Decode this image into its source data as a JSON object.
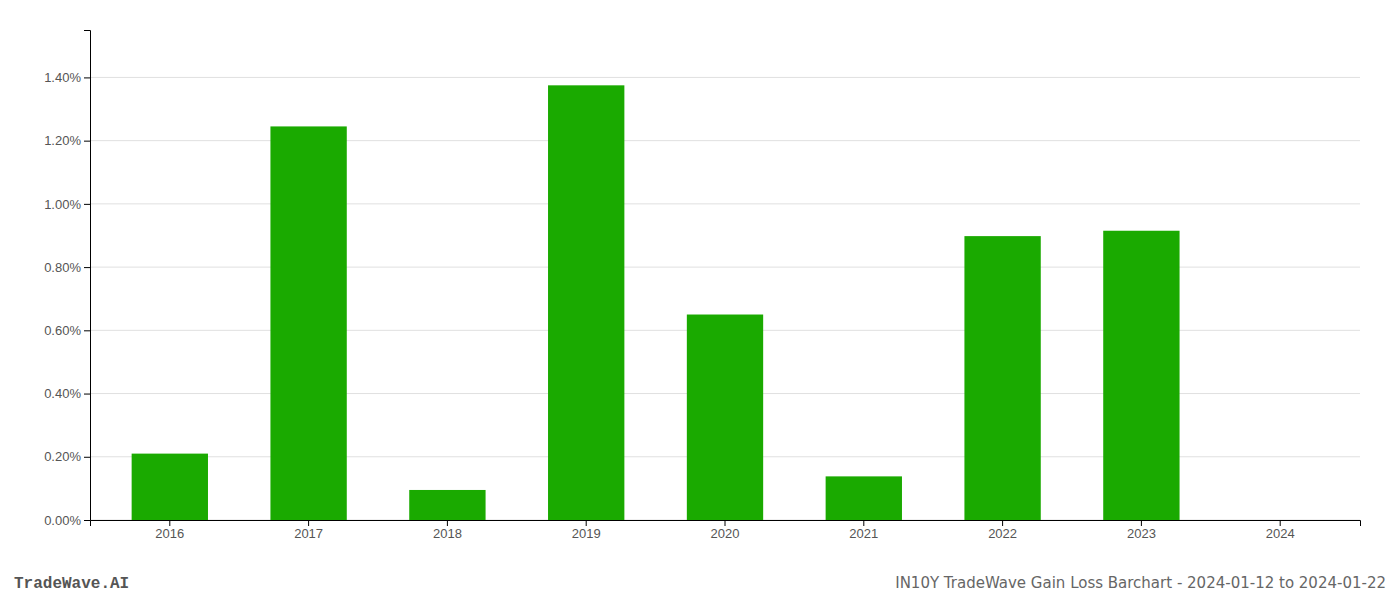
{
  "chart_data": {
    "type": "bar",
    "title": "IN10Y TradeWave Gain Loss Barchart - 2024-01-12 to 2024-01-22",
    "annotations": [
      "TradeWave.AI"
    ],
    "categories": [
      "2016",
      "2017",
      "2018",
      "2019",
      "2020",
      "2021",
      "2022",
      "2023",
      "2024"
    ],
    "values": [
      0.0021,
      0.01245,
      0.00095,
      0.01375,
      0.0065,
      0.00138,
      0.00898,
      0.00915,
      0.0
    ],
    "color": "#1aaa00",
    "ylim": [
      0.0,
      0.0155
    ],
    "yticks": [
      {
        "value": 0.0,
        "label": "0.00%"
      },
      {
        "value": 0.002,
        "label": "0.20%"
      },
      {
        "value": 0.004,
        "label": "0.40%"
      },
      {
        "value": 0.006,
        "label": "0.60%"
      },
      {
        "value": 0.008,
        "label": "0.80%"
      },
      {
        "value": 0.01,
        "label": "1.00%"
      },
      {
        "value": 0.012,
        "label": "1.20%"
      },
      {
        "value": 0.014,
        "label": "1.40%"
      }
    ],
    "grid": true
  }
}
